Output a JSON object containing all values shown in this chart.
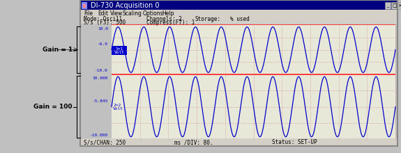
{
  "title": "DI-730 Acquisition 0",
  "menu_items": [
    "File",
    "Edit",
    "View",
    "Scaling",
    "Options",
    "Help"
  ],
  "status_line1": "Mode: Oscill      Channels: 2",
  "status_line1b": "S/s (F3): 500      Compress(F7): 1      Storage:       % used",
  "status_bottom": "S/s/CHAN: 250      ms /DIV: 80.      Status: SET-UP",
  "ch1_label": "1=1\nVolt",
  "ch2_label": "2=2\nVolt",
  "ch1_top": "10.0",
  "ch1_mid": "-6.0",
  "ch1_bot": "-10.0",
  "ch2_top": "10.000",
  "ch2_mid": "-5.845",
  "ch2_bot": "-10.000",
  "gain1_label": "Gain = 1",
  "gain2_label": "Gain = 100",
  "bg_color": "#c0c0c0",
  "window_bg": "#c0c0c0",
  "plot_bg": "#e8e8d8",
  "title_bar_color": "#000080",
  "title_bar_text": "#ffffff",
  "wave_color": "#0000cd",
  "grid_color_h": "#ff6060",
  "grid_color_v": "#d08080",
  "label_color": "#0000cd",
  "ch1_label_bg": "#0000cd",
  "ch1_label_fg": "#ffffff",
  "separator_color": "#ff4040",
  "freq_cycles": 11,
  "amplitude": 9.5,
  "amplitude2": 9.5,
  "font_mono": "monospace"
}
